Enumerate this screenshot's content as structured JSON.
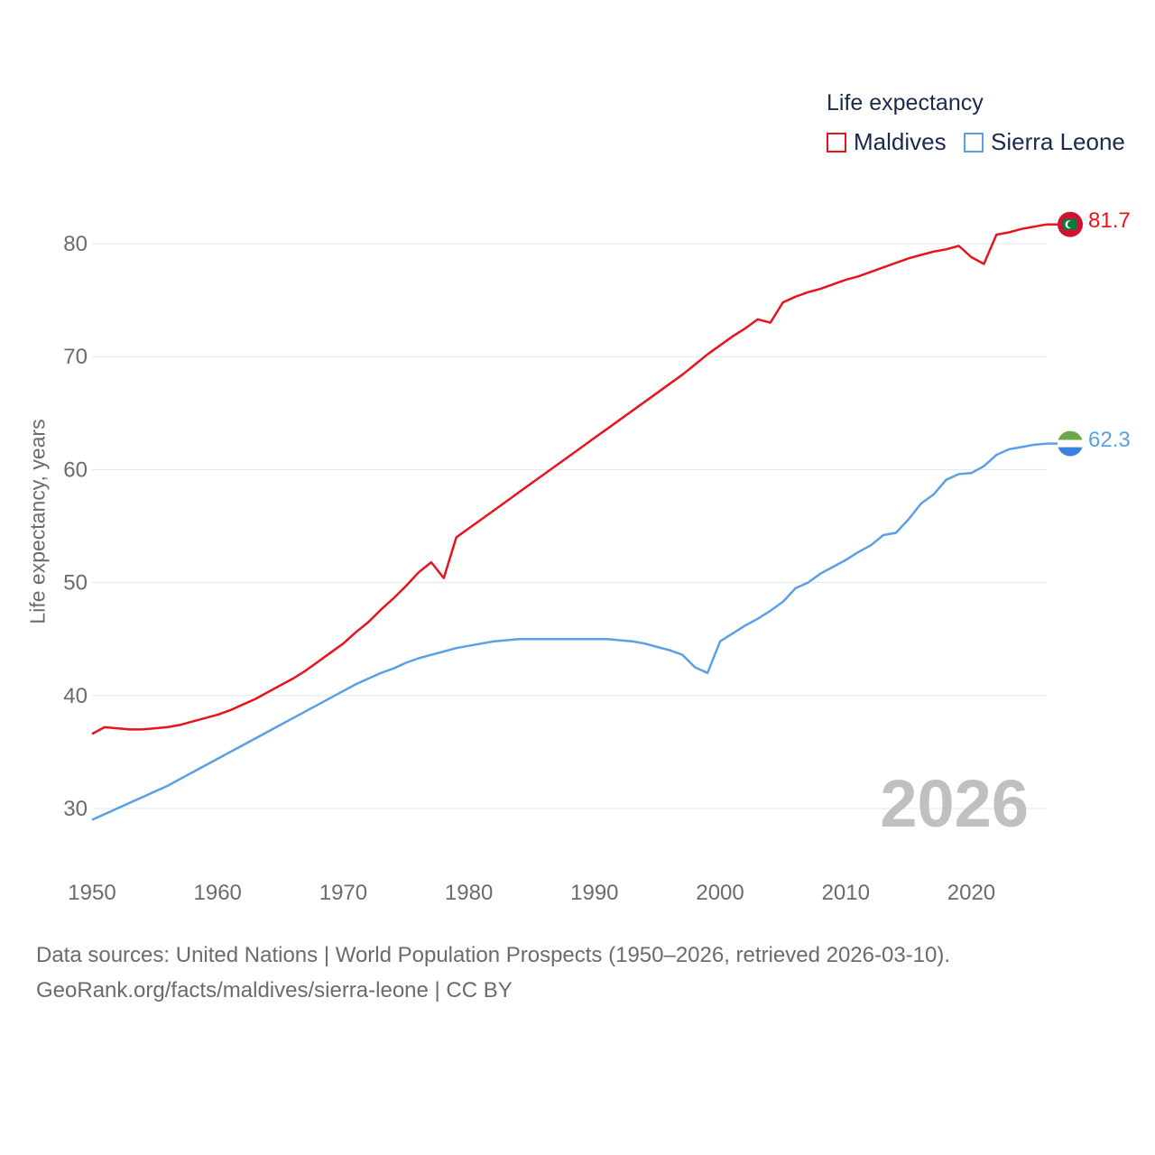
{
  "legend": {
    "title": "Life expectancy",
    "items": [
      {
        "name": "Maldives",
        "color": "#e8131b"
      },
      {
        "name": "Sierra Leone",
        "color": "#5aa0e6"
      }
    ]
  },
  "year_label": "2026",
  "footer": {
    "line1": "Data sources: United Nations | World Population Prospects (1950–2026, retrieved 2026-03-10).",
    "line2": "GeoRank.org/facts/maldives/sierra-leone | CC BY"
  },
  "chart_data": {
    "type": "line",
    "title": "Life expectancy",
    "xlabel": "",
    "ylabel": "Life expectancy, years",
    "xlim": [
      1950,
      2026
    ],
    "ylim": [
      25,
      85
    ],
    "x_ticks": [
      1950,
      1960,
      1970,
      1980,
      1990,
      2000,
      2010,
      2020
    ],
    "y_ticks": [
      30,
      40,
      50,
      60,
      70,
      80
    ],
    "grid": true,
    "legend_position": "top-right",
    "x": [
      1950,
      1951,
      1952,
      1953,
      1954,
      1955,
      1956,
      1957,
      1958,
      1959,
      1960,
      1961,
      1962,
      1963,
      1964,
      1965,
      1966,
      1967,
      1968,
      1969,
      1970,
      1971,
      1972,
      1973,
      1974,
      1975,
      1976,
      1977,
      1978,
      1979,
      1980,
      1981,
      1982,
      1983,
      1984,
      1985,
      1986,
      1987,
      1988,
      1989,
      1990,
      1991,
      1992,
      1993,
      1994,
      1995,
      1996,
      1997,
      1998,
      1999,
      2000,
      2001,
      2002,
      2003,
      2004,
      2005,
      2006,
      2007,
      2008,
      2009,
      2010,
      2011,
      2012,
      2013,
      2014,
      2015,
      2016,
      2017,
      2018,
      2019,
      2020,
      2021,
      2022,
      2023,
      2024,
      2025,
      2026
    ],
    "series": [
      {
        "name": "Maldives",
        "color": "#e8131b",
        "end_label": "81.7",
        "values": [
          36.6,
          37.2,
          37.1,
          37.0,
          37.0,
          37.1,
          37.2,
          37.4,
          37.7,
          38.0,
          38.3,
          38.7,
          39.2,
          39.7,
          40.3,
          40.9,
          41.5,
          42.2,
          43.0,
          43.8,
          44.6,
          45.6,
          46.5,
          47.6,
          48.6,
          49.7,
          50.9,
          51.8,
          50.4,
          54.0,
          54.8,
          55.6,
          56.4,
          57.2,
          58.0,
          58.8,
          59.6,
          60.4,
          61.2,
          62.0,
          62.8,
          63.6,
          64.4,
          65.2,
          66.0,
          66.8,
          67.6,
          68.4,
          69.3,
          70.2,
          71.0,
          71.8,
          72.5,
          73.3,
          73.0,
          74.8,
          75.3,
          75.7,
          76.0,
          76.4,
          76.8,
          77.1,
          77.5,
          77.9,
          78.3,
          78.7,
          79.0,
          79.3,
          79.5,
          79.8,
          78.8,
          78.2,
          80.8,
          81.0,
          81.3,
          81.5,
          81.7
        ]
      },
      {
        "name": "Sierra Leone",
        "color": "#5aa0e6",
        "end_label": "62.3",
        "values": [
          29.0,
          29.5,
          30.0,
          30.5,
          31.0,
          31.5,
          32.0,
          32.6,
          33.2,
          33.8,
          34.4,
          35.0,
          35.6,
          36.2,
          36.8,
          37.4,
          38.0,
          38.6,
          39.2,
          39.8,
          40.4,
          41.0,
          41.5,
          42.0,
          42.4,
          42.9,
          43.3,
          43.6,
          43.9,
          44.2,
          44.4,
          44.6,
          44.8,
          44.9,
          45.0,
          45.0,
          45.0,
          45.0,
          45.0,
          45.0,
          45.0,
          45.0,
          44.9,
          44.8,
          44.6,
          44.3,
          44.0,
          43.6,
          42.5,
          42.0,
          44.8,
          45.5,
          46.2,
          46.8,
          47.5,
          48.3,
          49.5,
          50.0,
          50.8,
          51.4,
          52.0,
          52.7,
          53.3,
          54.2,
          54.4,
          55.6,
          57.0,
          57.8,
          59.1,
          59.6,
          59.7,
          60.3,
          61.3,
          61.8,
          62.0,
          62.2,
          62.3
        ]
      }
    ]
  }
}
